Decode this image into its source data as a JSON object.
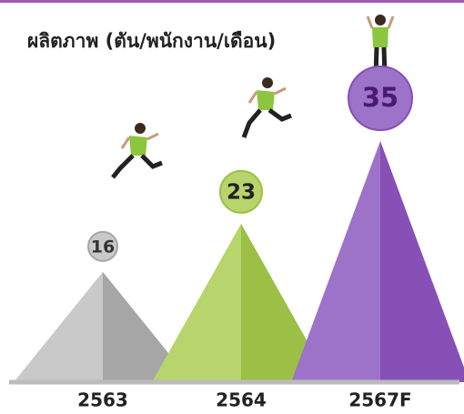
{
  "chart_data": {
    "type": "pyramid",
    "title": "ผลิตภาพ (ตัน/พนักงาน/เดือน)",
    "categories": [
      "2563",
      "2564",
      "2567F"
    ],
    "values": [
      16,
      23,
      35
    ],
    "colors": [
      "#c9c9c9",
      "#b8d46c",
      "#9d72c9"
    ],
    "shade_colors": [
      "#a6a6a6",
      "#9cbf45",
      "#8650b6"
    ],
    "label_colors": [
      "#333333",
      "#222222",
      "#4a1a73"
    ]
  }
}
